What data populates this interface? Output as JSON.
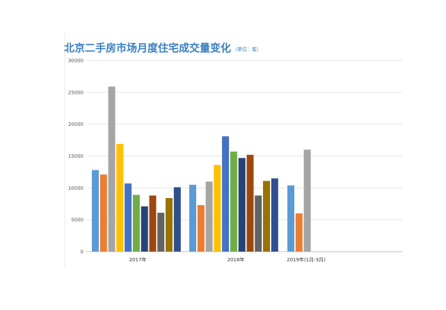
{
  "chart_data": {
    "type": "bar",
    "title": "北京二手房市场月度住宅成交量变化",
    "subtitle": "（单位：套）",
    "ylim": [
      0,
      30000
    ],
    "yticks": [
      "0",
      "5000",
      "10000",
      "15000",
      "20000",
      "25000",
      "30000"
    ],
    "grid": true,
    "categories": [
      "2017年",
      "2018年",
      "2019年(1月-3月)"
    ],
    "colors": [
      "#5b9bd5",
      "#ed7d31",
      "#a5a5a5",
      "#ffc000",
      "#4472c4",
      "#70ad47",
      "#264478",
      "#9e480e",
      "#636363",
      "#997300",
      "#2f4f8f",
      "#43682b"
    ],
    "series": [
      {
        "values": [
          12800,
          10500,
          10400
        ]
      },
      {
        "values": [
          12100,
          7300,
          6000
        ]
      },
      {
        "values": [
          25900,
          11000,
          16000
        ]
      },
      {
        "values": [
          16900,
          13600,
          null
        ]
      },
      {
        "values": [
          10700,
          18100,
          null
        ]
      },
      {
        "values": [
          8900,
          15700,
          null
        ]
      },
      {
        "values": [
          7100,
          14700,
          null
        ]
      },
      {
        "values": [
          8800,
          15200,
          null
        ]
      },
      {
        "values": [
          6100,
          8800,
          null
        ]
      },
      {
        "values": [
          8400,
          11100,
          null
        ]
      },
      {
        "values": [
          10100,
          11500,
          null
        ]
      }
    ]
  }
}
